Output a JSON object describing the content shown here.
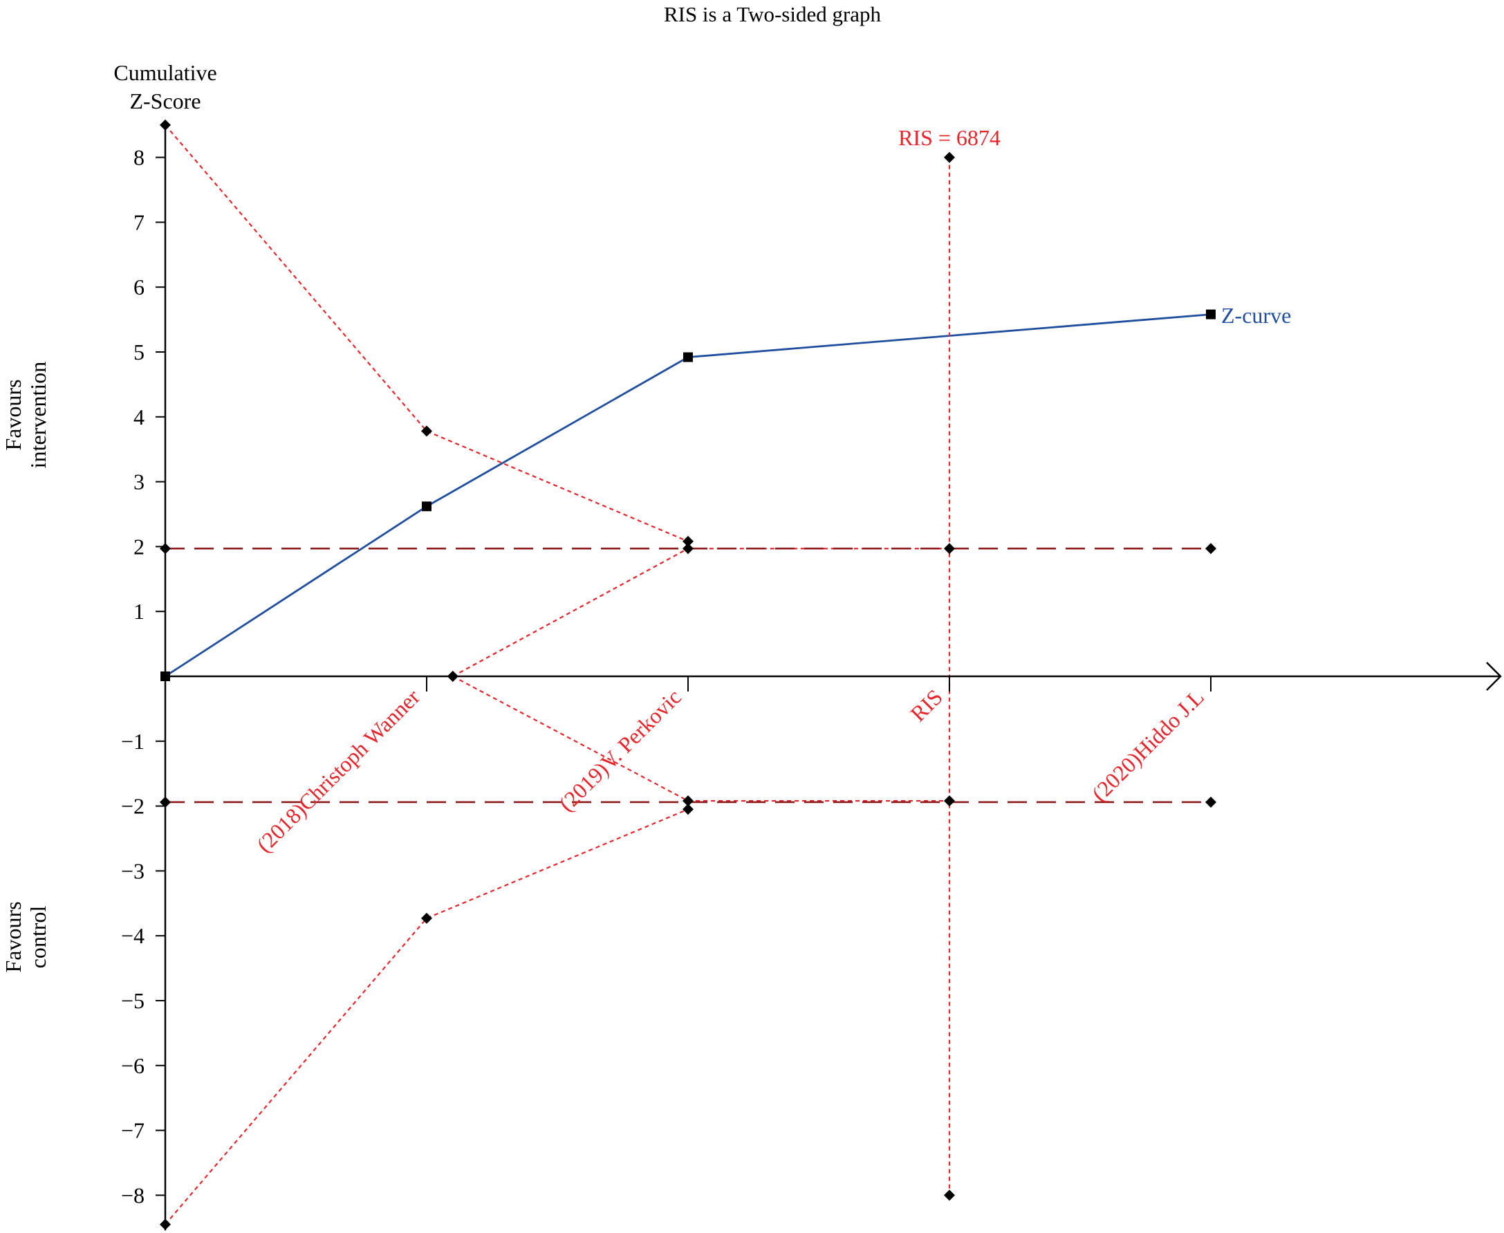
{
  "chart_data": {
    "type": "line",
    "title": "RIS is a Two-sided graph",
    "ylabel": "Cumulative Z-Score",
    "ylabel_line1": "Cumulative",
    "ylabel_line2": "Z-Score",
    "upper_region_line1": "Favours",
    "upper_region_line2": "intervention",
    "lower_region_line1": "Favours",
    "lower_region_line2": "control",
    "ylim": [
      -8.5,
      8.5
    ],
    "yticks": [
      -8,
      -7,
      -6,
      -5,
      -4,
      -3,
      -2,
      -1,
      1,
      2,
      3,
      4,
      5,
      6,
      7,
      8
    ],
    "yticklabels": [
      "−8",
      "−7",
      "−6",
      "−5",
      "−4",
      "−3",
      "−2",
      "−1",
      "1",
      "2",
      "3",
      "4",
      "5",
      "6",
      "7",
      "8"
    ],
    "grid": false,
    "x_categories": [
      "(2018)Christoph Wanner",
      "(2019)V. Perkovic",
      "RIS",
      "(2020)Hiddo J.L"
    ],
    "ris_label": "RIS = 6874",
    "series": [
      {
        "name": "Z-curve",
        "color": "#1f4e9e",
        "x": [
          0,
          1,
          2,
          4
        ],
        "y": [
          0,
          2.62,
          4.92,
          5.58
        ]
      },
      {
        "name": "",
        "color": "#e8252a",
        "x": [
          0,
          1,
          2
        ],
        "y": [
          8.5,
          3.78,
          2.08
        ]
      },
      {
        "name": "",
        "color": "#e8252a",
        "x": [
          0,
          1,
          2
        ],
        "y": [
          -8.45,
          -3.73,
          -2.05
        ]
      },
      {
        "name": "",
        "color": "#e8252a",
        "x": [
          1.1,
          2,
          3
        ],
        "y": [
          0,
          1.97,
          1.97
        ]
      },
      {
        "name": "",
        "color": "#e8252a",
        "x": [
          1.1,
          2,
          3
        ],
        "y": [
          0,
          -1.92,
          -1.92
        ]
      },
      {
        "name": "",
        "color": "#8b1a1a",
        "x": [
          0,
          4
        ],
        "y": [
          1.97,
          1.97
        ]
      },
      {
        "name": "",
        "color": "#8b1a1a",
        "x": [
          0,
          4
        ],
        "y": [
          -1.94,
          -1.94
        ]
      },
      {
        "name": "",
        "color": "#e8252a",
        "x": [
          3,
          3
        ],
        "y": [
          8.0,
          -8.0
        ]
      }
    ],
    "colors": {
      "z_curve": "#1f4e9e",
      "boundary": "#e8252a",
      "conventional": "#8b1a1a",
      "axis": "#000000",
      "marker": "#000000"
    }
  }
}
